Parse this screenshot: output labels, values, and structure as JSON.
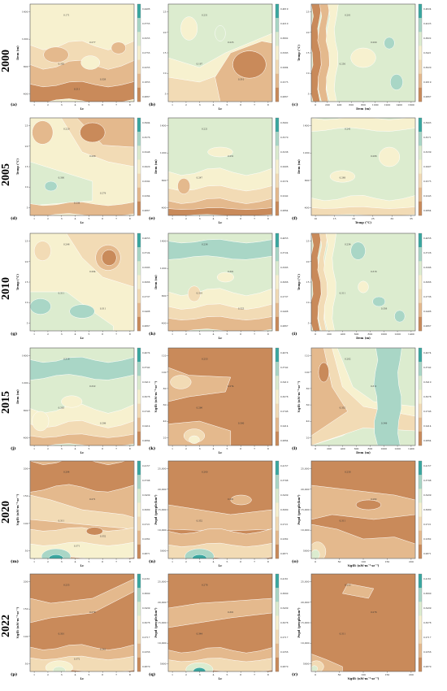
{
  "years": [
    "2000",
    "2005",
    "2010",
    "2015",
    "2020",
    "2022"
  ],
  "colors": {
    "low": "#c98a5a",
    "mid1": "#e4b98d",
    "mid2": "#f2dbb5",
    "mid3": "#f7f1cf",
    "mid4": "#dceccf",
    "mid5": "#a9d6c6",
    "high": "#3aa7a0"
  },
  "chart_data": [
    {
      "id": "a",
      "type": "heatmap",
      "year": "2000",
      "xlabel": "Lc",
      "ylabel": "Dem (m)",
      "xticks": [
        "1",
        "2",
        "3",
        "4",
        "5",
        "6",
        "7",
        "8"
      ],
      "yticks": [
        "1600",
        "1200",
        "800",
        "400"
      ],
      "colorbar": [
        "0.4406",
        "0.3755",
        "0.3255",
        "0.2755",
        "0.2255",
        "0.1855",
        "0.0867"
      ],
      "contour_labels": [
        "0.171",
        "0.277",
        "0.350",
        "0.326",
        "0.211"
      ],
      "pattern": "a"
    },
    {
      "id": "b",
      "type": "heatmap",
      "year": "2000",
      "xlabel": "Lc",
      "ylabel": "",
      "xticks": [
        "1",
        "2",
        "3",
        "4",
        "5",
        "6",
        "7",
        "8"
      ],
      "yticks": [
        "25",
        "20",
        "15",
        "10",
        "5"
      ],
      "colorbar": [
        "0.4619",
        "0.4210",
        "0.3802",
        "0.3393",
        "0.2984",
        "0.2575",
        "0.0867"
      ],
      "contour_labels": [
        "0.251",
        "0.225",
        "0.197",
        "0.310"
      ],
      "pattern": "b"
    },
    {
      "id": "c",
      "type": "heatmap",
      "year": "2000",
      "xlabel": "Dem (m)",
      "ylabel": "Temp (°C)",
      "xticks": [
        "0",
        "200",
        "400",
        "600",
        "800",
        "1000",
        "1200",
        "1400",
        "1600"
      ],
      "yticks": [
        "25",
        "20",
        "15",
        "10",
        "5"
      ],
      "colorbar": [
        "0.4624",
        "0.4223",
        "0.3822",
        "0.3421",
        "0.3020",
        "0.2619",
        "0.0867"
      ],
      "contour_labels": [
        "0.201",
        "0.200",
        "0.250"
      ],
      "pattern": "c"
    },
    {
      "id": "d",
      "type": "heatmap",
      "year": "2005",
      "xlabel": "Lc",
      "ylabel": "Temp (°C)",
      "xticks": [
        "1",
        "2",
        "3",
        "4",
        "5",
        "6",
        "7",
        "8"
      ],
      "yticks": [
        "25",
        "20",
        "15",
        "10",
        "5"
      ],
      "colorbar": [
        "0.3904",
        "0.3576",
        "0.3248",
        "0.2920",
        "0.2592",
        "0.2264",
        "0.0867"
      ],
      "contour_labels": [
        "0.220",
        "0.268",
        "0.300",
        "0.279",
        "0.238"
      ],
      "pattern": "d"
    },
    {
      "id": "e",
      "type": "heatmap",
      "year": "2005",
      "xlabel": "Lc",
      "ylabel": "Dem (m)",
      "xticks": [
        "1",
        "2",
        "3",
        "4",
        "5",
        "6",
        "7",
        "8"
      ],
      "yticks": [
        "1600",
        "1200",
        "800",
        "400"
      ],
      "colorbar": [
        "0.3902",
        "0.3570",
        "0.3238",
        "0.2906",
        "0.2574",
        "0.2242",
        "0.0864"
      ],
      "contour_labels": [
        "0.221",
        "0.251",
        "0.247"
      ],
      "pattern": "e"
    },
    {
      "id": "f",
      "type": "heatmap",
      "year": "2005",
      "xlabel": "Temp (°C)",
      "ylabel": "Dem (m)",
      "xticks": [
        "10",
        "15",
        "20",
        "25",
        "30",
        "35"
      ],
      "yticks": [
        "1600",
        "1200",
        "800",
        "400"
      ],
      "colorbar": [
        "0.3903",
        "0.3571",
        "0.3239",
        "0.2907",
        "0.2575",
        "0.2243",
        "0.0864"
      ],
      "contour_labels": [
        "0.241",
        "0.266",
        "0.268"
      ],
      "pattern": "f"
    },
    {
      "id": "g",
      "type": "heatmap",
      "year": "2010",
      "xlabel": "Lc",
      "ylabel": "Temp (°C)",
      "xticks": [
        "1",
        "2",
        "3",
        "4",
        "5",
        "6",
        "7",
        "8"
      ],
      "yticks": [
        "25",
        "20",
        "15",
        "10",
        "5"
      ],
      "colorbar": [
        "0.4053",
        "0.3724",
        "0.3395",
        "0.3066",
        "0.2737",
        "0.2408",
        "0.0867"
      ],
      "contour_labels": [
        "0.246",
        "0.264",
        "0.311",
        "0.311"
      ],
      "pattern": "g"
    },
    {
      "id": "h",
      "type": "heatmap",
      "year": "2010",
      "xlabel": "Lc",
      "ylabel": "Dem (m)",
      "xticks": [
        "1",
        "2",
        "3",
        "4",
        "5",
        "6",
        "7",
        "8"
      ],
      "yticks": [
        "1600",
        "1200",
        "800",
        "400"
      ],
      "colorbar": [
        "0.4053",
        "0.3724",
        "0.3395",
        "0.3066",
        "0.2737",
        "0.2408",
        "0.0867"
      ],
      "contour_labels": [
        "0.236",
        "0.301",
        "0.316",
        "0.325"
      ],
      "pattern": "h"
    },
    {
      "id": "i",
      "type": "heatmap",
      "year": "2010",
      "xlabel": "Dem (m)",
      "ylabel": "Temp (°C)",
      "xticks": [
        "0",
        "200",
        "400",
        "600",
        "800",
        "1000",
        "1200",
        "1400"
      ],
      "yticks": [
        "25",
        "20",
        "15",
        "10",
        "5"
      ],
      "colorbar": [
        "0.4056",
        "0.3726",
        "0.3396",
        "0.3066",
        "0.2736",
        "0.2406",
        "0.0867"
      ],
      "contour_labels": [
        "0.254",
        "0.316",
        "0.311",
        "0.356"
      ],
      "pattern": "i"
    },
    {
      "id": "j",
      "type": "heatmap",
      "year": "2015",
      "xlabel": "Lc",
      "ylabel": "Dem (m)",
      "xticks": [
        "1",
        "2",
        "3",
        "4",
        "5",
        "6",
        "7",
        "8"
      ],
      "yticks": [
        "1600",
        "1200",
        "800",
        "400"
      ],
      "colorbar": [
        "0.4074",
        "0.3742",
        "0.3410",
        "0.3078",
        "0.2746",
        "0.2414",
        "0.0864"
      ],
      "contour_labels": [
        "0.316",
        "0.322",
        "0.283",
        "0.299"
      ],
      "pattern": "j"
    },
    {
      "id": "k",
      "type": "heatmap",
      "year": "2015",
      "xlabel": "Lc",
      "ylabel": "Ngtlt (nW·m⁻²·sr⁻¹)",
      "xticks": [
        "1",
        "2",
        "3",
        "4",
        "5",
        "6",
        "7",
        "8"
      ],
      "yticks": [
        "120",
        "100",
        "80",
        "60",
        "40",
        "20"
      ],
      "colorbar": [
        "0.4074",
        "0.3742",
        "0.3410",
        "0.3078",
        "0.2746",
        "0.2414",
        "0.0864"
      ],
      "contour_labels": [
        "0.253",
        "0.274",
        "0.296",
        "0.300"
      ],
      "pattern": "k"
    },
    {
      "id": "l",
      "type": "heatmap",
      "year": "2015",
      "xlabel": "Dem (m)",
      "ylabel": "Ngtlt (nW·m⁻²·sr⁻¹)",
      "xticks": [
        "0",
        "200",
        "400",
        "600",
        "800",
        "1000",
        "1200",
        "1400"
      ],
      "yticks": [
        "120",
        "100",
        "80",
        "60",
        "40",
        "20"
      ],
      "colorbar": [
        "0.4074",
        "0.3742",
        "0.3410",
        "0.3078",
        "0.2746",
        "0.2414",
        "0.0864"
      ],
      "contour_labels": [
        "0.282",
        "0.311",
        "0.332",
        "0.349"
      ],
      "pattern": "l"
    },
    {
      "id": "m",
      "type": "heatmap",
      "year": "2020",
      "xlabel": "Lc",
      "ylabel": "Ngtlt (nW·m⁻²·sr⁻¹)",
      "xticks": [
        "1",
        "2",
        "3",
        "4",
        "5",
        "6",
        "7",
        "8"
      ],
      "yticks": [
        "200",
        "150",
        "100",
        "50"
      ],
      "colorbar": [
        "0.4157",
        "0.3798",
        "0.3439",
        "0.3080",
        "0.2721",
        "0.2362",
        "0.0871"
      ],
      "contour_labels": [
        "0.264",
        "0.271",
        "0.311",
        "0.352",
        "0.371"
      ],
      "pattern": "m"
    },
    {
      "id": "n",
      "type": "heatmap",
      "year": "2020",
      "xlabel": "Lc",
      "ylabel": "Popd (people/km²)",
      "xticks": [
        "1",
        "2",
        "3",
        "4",
        "5",
        "6",
        "7",
        "8"
      ],
      "yticks": [
        "25,000",
        "20,000",
        "15,000",
        "10,000",
        "5000"
      ],
      "colorbar": [
        "0.4157",
        "0.3798",
        "0.3439",
        "0.3080",
        "0.2721",
        "0.2362",
        "0.0871"
      ],
      "contour_labels": [
        "0.260",
        "0.281",
        "0.352"
      ],
      "pattern": "n"
    },
    {
      "id": "o",
      "type": "heatmap",
      "year": "2020",
      "xlabel": "Ngtlt (nW·m⁻²·sr⁻¹)",
      "ylabel": "Popd (people/km²)",
      "xticks": [
        "0",
        "50",
        "100",
        "150",
        "200"
      ],
      "yticks": [
        "25,000",
        "20,000",
        "15,000",
        "10,000",
        "5000"
      ],
      "colorbar": [
        "0.4157",
        "0.3798",
        "0.3439",
        "0.3080",
        "0.2721",
        "0.2362",
        "0.0871"
      ],
      "contour_labels": [
        "0.258",
        "0.282",
        "0.311"
      ],
      "pattern": "o"
    },
    {
      "id": "p",
      "type": "heatmap",
      "year": "2022",
      "xlabel": "Lc",
      "ylabel": "Ngtlt (nW·m⁻²·sr⁻¹)",
      "xticks": [
        "1",
        "2",
        "3",
        "4",
        "5",
        "6",
        "7",
        "8"
      ],
      "yticks": [
        "200",
        "150",
        "100",
        "50"
      ],
      "colorbar": [
        "0.4161",
        "0.3800",
        "0.3439",
        "0.3078",
        "0.2717",
        "0.2356",
        "0.0870"
      ],
      "contour_labels": [
        "0.255",
        "0.278",
        "0.301",
        "0.341",
        "0.372"
      ],
      "pattern": "p"
    },
    {
      "id": "q",
      "type": "heatmap",
      "year": "2022",
      "xlabel": "Lc",
      "ylabel": "Popd (people/km²)",
      "xticks": [
        "1",
        "2",
        "3",
        "4",
        "5",
        "6",
        "7",
        "8"
      ],
      "yticks": [
        "25,000",
        "20,000",
        "15,000",
        "10,000",
        "5000"
      ],
      "colorbar": [
        "0.4161",
        "0.3800",
        "0.3439",
        "0.3078",
        "0.2717",
        "0.2356",
        "0.0870"
      ],
      "contour_labels": [
        "0.278",
        "0.301",
        "0.344"
      ],
      "pattern": "q"
    },
    {
      "id": "r",
      "type": "heatmap",
      "year": "2022",
      "xlabel": "Ngtlt (nW·m⁻²·sr⁻¹)",
      "ylabel": "Popd (people/km²)",
      "xticks": [
        "0",
        "50",
        "100",
        "150",
        "200"
      ],
      "yticks": [
        "25,000",
        "20,000",
        "15,000",
        "10,000",
        "5000"
      ],
      "colorbar": [
        "0.4161",
        "0.3800",
        "0.3439",
        "0.3078",
        "0.2717",
        "0.2356",
        "0.0870"
      ],
      "contour_labels": [
        "0.252",
        "0.276",
        "0.311"
      ],
      "pattern": "r"
    }
  ]
}
